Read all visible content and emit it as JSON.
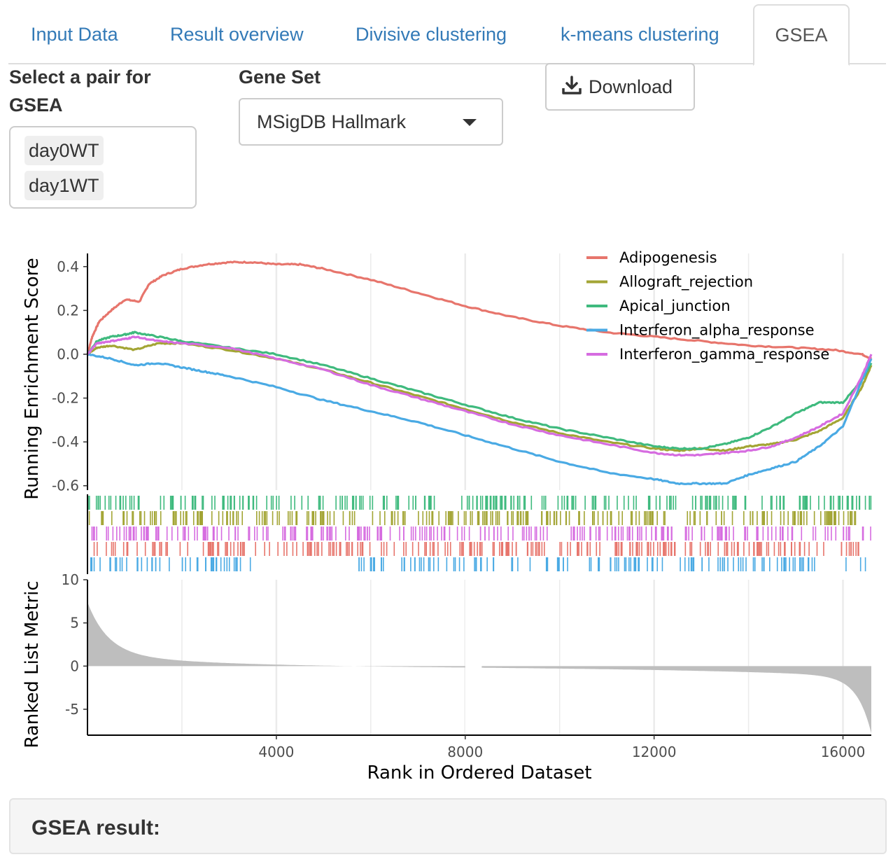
{
  "tabs": [
    {
      "label": "Input Data"
    },
    {
      "label": "Result overview"
    },
    {
      "label": "Divisive clustering"
    },
    {
      "label": "k-means clustering"
    },
    {
      "label": "GSEA"
    }
  ],
  "pair_select": {
    "label_line1": "Select a pair for",
    "label_line2": "GSEA",
    "items": [
      "day0WT",
      "day1WT"
    ]
  },
  "gene_set": {
    "label": "Gene Set",
    "selected": "MSigDB Hallmark"
  },
  "download_button": {
    "label": "Download",
    "icon": "download-icon"
  },
  "result_panel": {
    "title": "GSEA result:"
  },
  "chart_data": {
    "type": "line",
    "xlabel": "Rank in Ordered Dataset",
    "xticks": [
      4000,
      8000,
      12000,
      16000
    ],
    "xlim": [
      0,
      16600
    ],
    "top_panel": {
      "ylabel": "Running Enrichment Score",
      "ylim": [
        -0.62,
        0.46
      ],
      "yticks": [
        0.4,
        0.2,
        0.0,
        -0.2,
        -0.4,
        -0.6
      ],
      "ytick_labels": [
        "0.4",
        "0.2",
        "0.0",
        "-0.2",
        "-0.4",
        "-0.6"
      ],
      "legend_position": "top-right",
      "series": [
        {
          "name": "Adipogenesis",
          "color": "#e7756c",
          "x": [
            0,
            100,
            250,
            500,
            800,
            1100,
            1300,
            1600,
            2000,
            2500,
            3000,
            3500,
            4000,
            4500,
            5000,
            6000,
            7000,
            8000,
            9000,
            10000,
            11000,
            12000,
            13000,
            14000,
            15000,
            15800,
            16400,
            16600
          ],
          "y": [
            0.0,
            0.08,
            0.15,
            0.2,
            0.25,
            0.24,
            0.32,
            0.36,
            0.39,
            0.41,
            0.42,
            0.42,
            0.41,
            0.41,
            0.39,
            0.34,
            0.28,
            0.22,
            0.17,
            0.13,
            0.1,
            0.08,
            0.06,
            0.04,
            0.03,
            0.02,
            0.0,
            -0.02
          ]
        },
        {
          "name": "Allograft_rejection",
          "color": "#a3a535",
          "x": [
            0,
            200,
            500,
            1000,
            1500,
            2000,
            3000,
            4000,
            5000,
            6000,
            7000,
            8000,
            9000,
            10000,
            11000,
            12000,
            12500,
            13000,
            13500,
            14000,
            14500,
            15000,
            15500,
            16000,
            16400,
            16600
          ],
          "y": [
            0.0,
            0.03,
            0.04,
            0.02,
            0.05,
            0.05,
            0.02,
            -0.02,
            -0.07,
            -0.13,
            -0.19,
            -0.25,
            -0.31,
            -0.36,
            -0.4,
            -0.43,
            -0.44,
            -0.43,
            -0.44,
            -0.42,
            -0.41,
            -0.39,
            -0.35,
            -0.29,
            -0.15,
            -0.05
          ]
        },
        {
          "name": "Apical_junction",
          "color": "#3fba7e",
          "x": [
            0,
            200,
            500,
            800,
            1000,
            1500,
            2000,
            3000,
            4000,
            5000,
            6000,
            7000,
            8000,
            9000,
            10000,
            11000,
            12000,
            12500,
            13000,
            13500,
            14000,
            14500,
            15000,
            15500,
            16000,
            16400,
            16600
          ],
          "y": [
            0.0,
            0.06,
            0.08,
            0.09,
            0.1,
            0.08,
            0.06,
            0.03,
            0.0,
            -0.05,
            -0.11,
            -0.17,
            -0.23,
            -0.29,
            -0.34,
            -0.38,
            -0.42,
            -0.43,
            -0.43,
            -0.41,
            -0.38,
            -0.33,
            -0.27,
            -0.22,
            -0.22,
            -0.12,
            -0.04
          ]
        },
        {
          "name": "Interferon_alpha_response",
          "color": "#4aaae4",
          "x": [
            0,
            500,
            1000,
            1500,
            2000,
            2500,
            3000,
            4000,
            5000,
            6000,
            7000,
            8000,
            9000,
            10000,
            11000,
            12000,
            12500,
            13000,
            13500,
            14000,
            14500,
            15000,
            15500,
            16000,
            16400,
            16600
          ],
          "y": [
            0.0,
            -0.02,
            -0.05,
            -0.04,
            -0.06,
            -0.08,
            -0.1,
            -0.15,
            -0.21,
            -0.26,
            -0.31,
            -0.37,
            -0.43,
            -0.49,
            -0.54,
            -0.57,
            -0.59,
            -0.59,
            -0.59,
            -0.55,
            -0.52,
            -0.49,
            -0.42,
            -0.33,
            -0.12,
            -0.02
          ]
        },
        {
          "name": "Interferon_gamma_response",
          "color": "#d66ce0",
          "x": [
            0,
            200,
            500,
            800,
            1000,
            1500,
            2000,
            3000,
            4000,
            5000,
            6000,
            7000,
            8000,
            9000,
            10000,
            11000,
            12000,
            12500,
            13000,
            13500,
            14000,
            14500,
            15000,
            15500,
            16000,
            16400,
            16600
          ],
          "y": [
            0.0,
            0.05,
            0.06,
            0.07,
            0.08,
            0.06,
            0.05,
            0.03,
            -0.02,
            -0.07,
            -0.14,
            -0.2,
            -0.26,
            -0.32,
            -0.37,
            -0.41,
            -0.45,
            -0.46,
            -0.46,
            -0.45,
            -0.44,
            -0.42,
            -0.38,
            -0.33,
            -0.27,
            -0.1,
            0.0
          ]
        }
      ]
    },
    "bottom_panel": {
      "ylabel": "Ranked List Metric",
      "ylim": [
        -8,
        10
      ],
      "yticks": [
        10,
        5,
        0,
        -5
      ],
      "ytick_labels": [
        "10",
        "5",
        "0",
        "-5"
      ],
      "fill_color": "#bebebe"
    }
  }
}
